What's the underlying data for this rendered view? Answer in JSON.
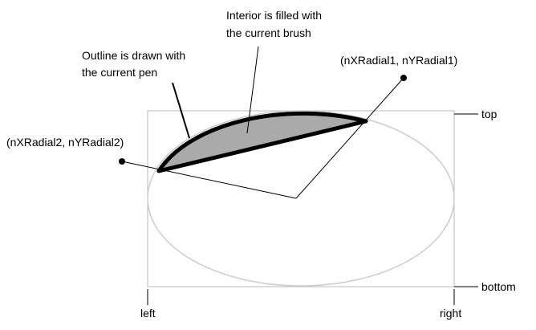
{
  "labels": {
    "interior": [
      "Interior is filled with",
      "the current brush"
    ],
    "outline": [
      "Outline is drawn with",
      "the current pen"
    ],
    "radial1": "(nXRadial1, nYRadial1)",
    "radial2": "(nXRadial2, nYRadial2)",
    "top": "top",
    "bottom": "bottom",
    "left": "left",
    "right": "right"
  }
}
